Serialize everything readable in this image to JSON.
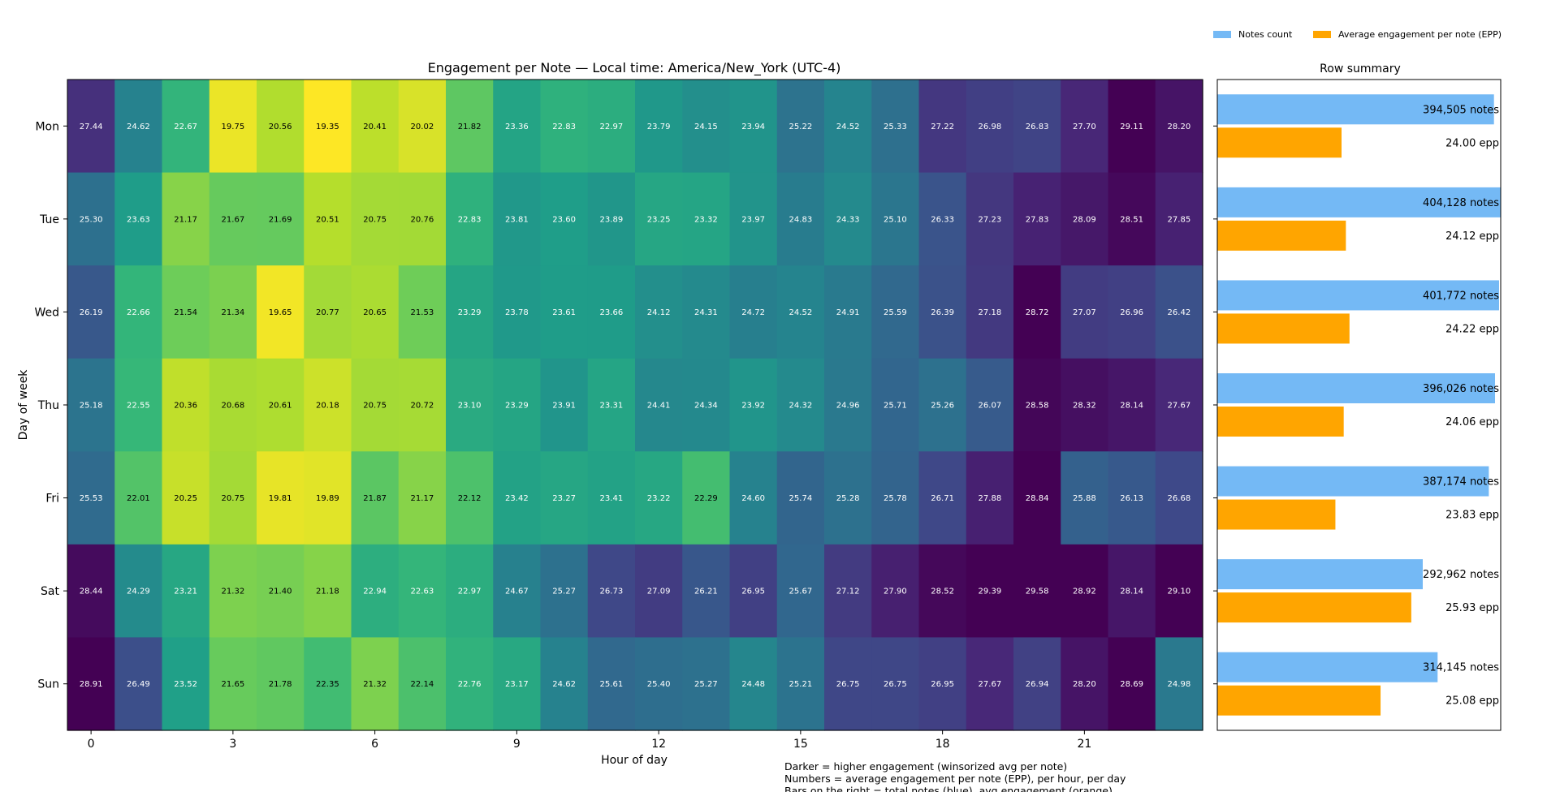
{
  "chart_data": [
    {
      "type": "heatmap",
      "title": "Engagement per Note — Local time: America/New_York (UTC-4)",
      "xlabel": "Hour of day",
      "ylabel": "Day of week",
      "x_ticks": [
        "0",
        "3",
        "6",
        "9",
        "12",
        "15",
        "18",
        "21"
      ],
      "rows": [
        "Mon",
        "Tue",
        "Wed",
        "Thu",
        "Fri",
        "Sat",
        "Sun"
      ],
      "hours": [
        0,
        1,
        2,
        3,
        4,
        5,
        6,
        7,
        8,
        9,
        10,
        11,
        12,
        13,
        14,
        15,
        16,
        17,
        18,
        19,
        20,
        21,
        22,
        23
      ],
      "colormap": "viridis (reversed: darker = higher)",
      "color_range": [
        19.5,
        28.7
      ],
      "values": [
        [
          27.44,
          24.62,
          22.67,
          19.75,
          20.56,
          19.35,
          20.41,
          20.02,
          21.82,
          23.36,
          22.83,
          22.97,
          23.79,
          24.15,
          23.94,
          25.22,
          24.52,
          25.33,
          27.22,
          26.98,
          26.83,
          27.7,
          29.11,
          28.2
        ],
        [
          25.3,
          23.63,
          21.17,
          21.67,
          21.69,
          20.51,
          20.75,
          20.76,
          22.83,
          23.81,
          23.6,
          23.89,
          23.25,
          23.32,
          23.97,
          24.83,
          24.33,
          25.1,
          26.33,
          27.23,
          27.83,
          28.09,
          28.51,
          27.85
        ],
        [
          26.19,
          22.66,
          21.54,
          21.34,
          19.65,
          20.77,
          20.65,
          21.53,
          23.29,
          23.78,
          23.61,
          23.66,
          24.12,
          24.31,
          24.72,
          24.52,
          24.91,
          25.59,
          26.39,
          27.18,
          28.72,
          27.07,
          26.96,
          26.42
        ],
        [
          25.18,
          22.55,
          20.36,
          20.68,
          20.61,
          20.18,
          20.75,
          20.72,
          23.1,
          23.29,
          23.91,
          23.31,
          24.41,
          24.34,
          23.92,
          24.32,
          24.96,
          25.71,
          25.26,
          26.07,
          28.58,
          28.32,
          28.14,
          27.67
        ],
        [
          25.53,
          22.01,
          20.25,
          20.75,
          19.81,
          19.89,
          21.87,
          21.17,
          22.12,
          23.42,
          23.27,
          23.41,
          23.22,
          22.29,
          24.6,
          25.74,
          25.28,
          25.78,
          26.71,
          27.88,
          28.84,
          25.88,
          26.13,
          26.68
        ],
        [
          28.44,
          24.29,
          23.21,
          21.32,
          21.4,
          21.18,
          22.94,
          22.63,
          22.97,
          24.67,
          25.27,
          26.73,
          27.09,
          26.21,
          26.95,
          25.67,
          27.12,
          27.9,
          28.52,
          29.39,
          29.58,
          28.92,
          28.14,
          29.1
        ],
        [
          28.91,
          26.49,
          23.52,
          21.65,
          21.78,
          22.35,
          21.32,
          22.14,
          22.76,
          23.17,
          24.62,
          25.61,
          25.4,
          25.27,
          24.48,
          25.21,
          26.75,
          26.75,
          26.95,
          27.67,
          26.94,
          28.2,
          28.69,
          24.98
        ]
      ]
    },
    {
      "type": "bar",
      "title": "Row summary",
      "orientation": "horizontal",
      "categories": [
        "Mon",
        "Tue",
        "Wed",
        "Thu",
        "Fri",
        "Sat",
        "Sun"
      ],
      "legend_position": "top-right",
      "series": [
        {
          "name": "Notes count",
          "color": "#74b9f5",
          "values": [
            394505,
            404128,
            401772,
            396026,
            387174,
            292962,
            314145
          ],
          "labels": [
            "394,505 notes",
            "404,128 notes",
            "401,772 notes",
            "396,026 notes",
            "387,174 notes",
            "292,962 notes",
            "314,145 notes"
          ]
        },
        {
          "name": "Average engagement per note (EPP)",
          "color": "#ffa500",
          "values": [
            24.0,
            24.12,
            24.22,
            24.06,
            23.83,
            25.93,
            25.08
          ],
          "labels": [
            "24.00 epp",
            "24.12 epp",
            "24.22 epp",
            "24.06 epp",
            "23.83 epp",
            "25.93 epp",
            "25.08 epp"
          ]
        }
      ]
    }
  ],
  "footnote": [
    "Darker = higher engagement (winsorized avg per note)",
    "Numbers = average engagement per note (EPP), per hour, per day",
    "Bars on the right = total notes (blue), avg engagement (orange)"
  ]
}
